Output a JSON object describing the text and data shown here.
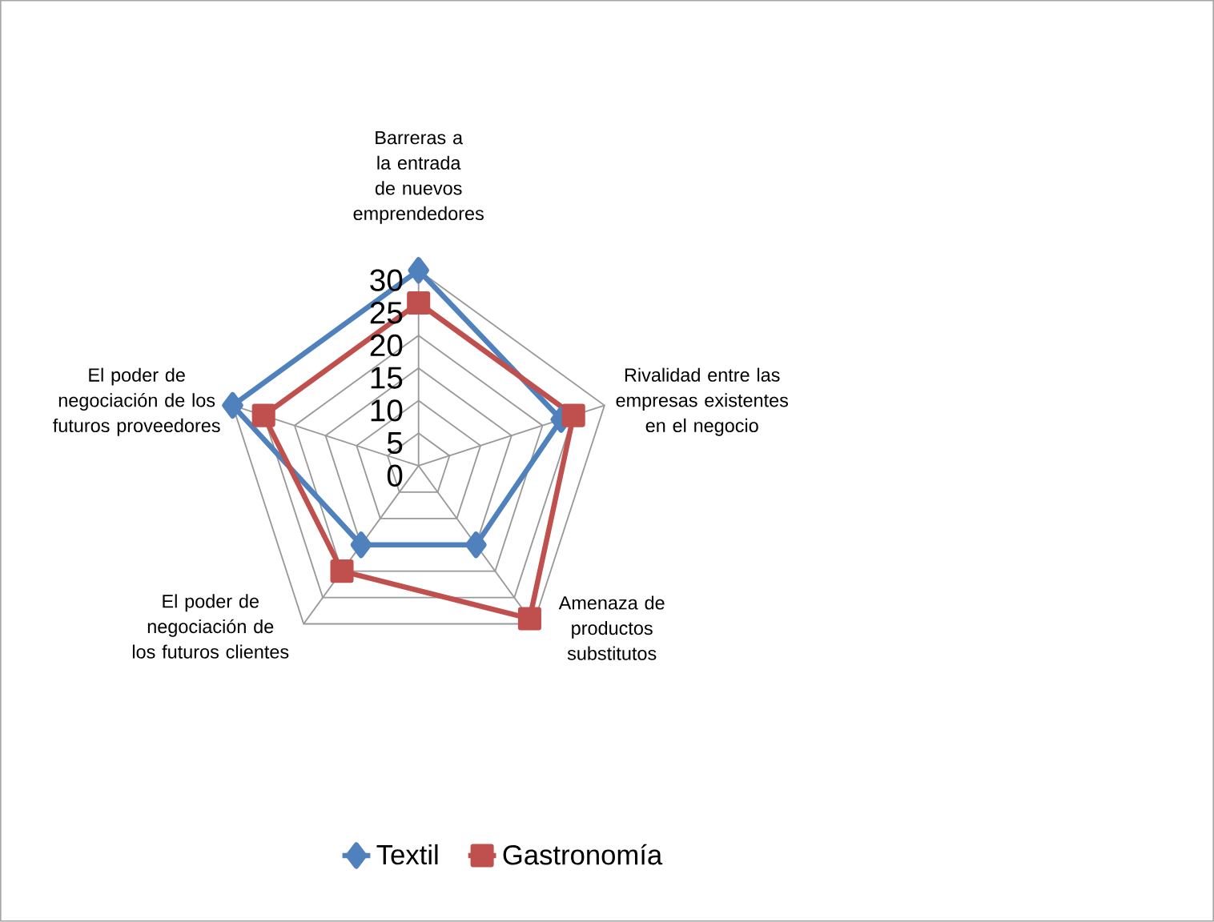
{
  "chart_data": {
    "type": "radar",
    "categories": [
      "Barreras a la entrada de nuevos emprendedores",
      "Rivalidad entre las empresas existentes en el negocio",
      "Amenaza de productos substitutos",
      "El poder de negociación de los futuros clientes",
      "El poder de negociación de los futuros proveedores"
    ],
    "series": [
      {
        "name": "Textil",
        "color": "#4f81bd",
        "marker": "diamond",
        "values": [
          30,
          23,
          15,
          15,
          30
        ]
      },
      {
        "name": "Gastronomía",
        "color": "#c0504d",
        "marker": "square",
        "values": [
          25,
          25,
          29,
          20,
          25
        ]
      }
    ],
    "ylim": [
      0,
      30
    ],
    "yticks": [
      0,
      5,
      10,
      15,
      20,
      25,
      30
    ],
    "grid": true,
    "legend": "bottom"
  }
}
